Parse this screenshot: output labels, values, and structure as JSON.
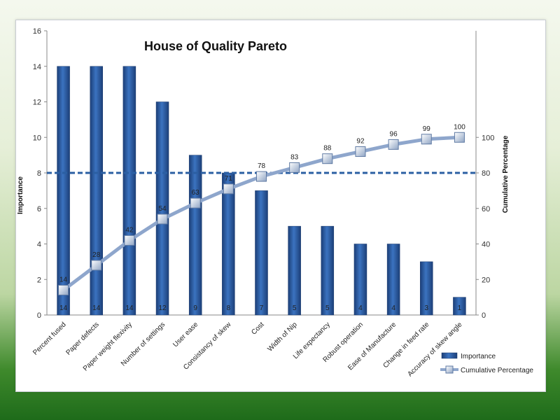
{
  "chart_data": {
    "type": "bar",
    "title": "House of Quality Pareto",
    "ylabel": "Importance",
    "y2label": "Cumulative Percentage",
    "ylim": [
      0,
      16
    ],
    "yticks": [
      0,
      2,
      4,
      6,
      8,
      10,
      12,
      14,
      16
    ],
    "y2lim": [
      0,
      160
    ],
    "y2ticks": [
      "0",
      "20",
      "40",
      "60",
      "80",
      "100"
    ],
    "threshold": 80,
    "categories": [
      "Percent fused",
      "Paper defects",
      "Paper weight flexivity",
      "Number of settings",
      "User ease",
      "Consistancy of skew",
      "Cost",
      "Width of Nip",
      "Life expectancy",
      "Robust operation",
      "Ease of Manufacture",
      "Change in feed rate",
      "Accuracy of skew angle"
    ],
    "series": [
      {
        "name": "Importance",
        "kind": "bar",
        "color": "#2e5e9e",
        "values": [
          14,
          14,
          14,
          12,
          9,
          8,
          7,
          5,
          5,
          4,
          4,
          3,
          1
        ]
      },
      {
        "name": "Cumulative Percentage",
        "kind": "line",
        "axis": "right",
        "color": "#8ea6cc",
        "values": [
          14,
          28,
          42,
          54,
          63,
          71,
          78,
          83,
          88,
          92,
          96,
          99,
          100
        ]
      }
    ],
    "legend_position": "bottom-right",
    "grid": false
  }
}
